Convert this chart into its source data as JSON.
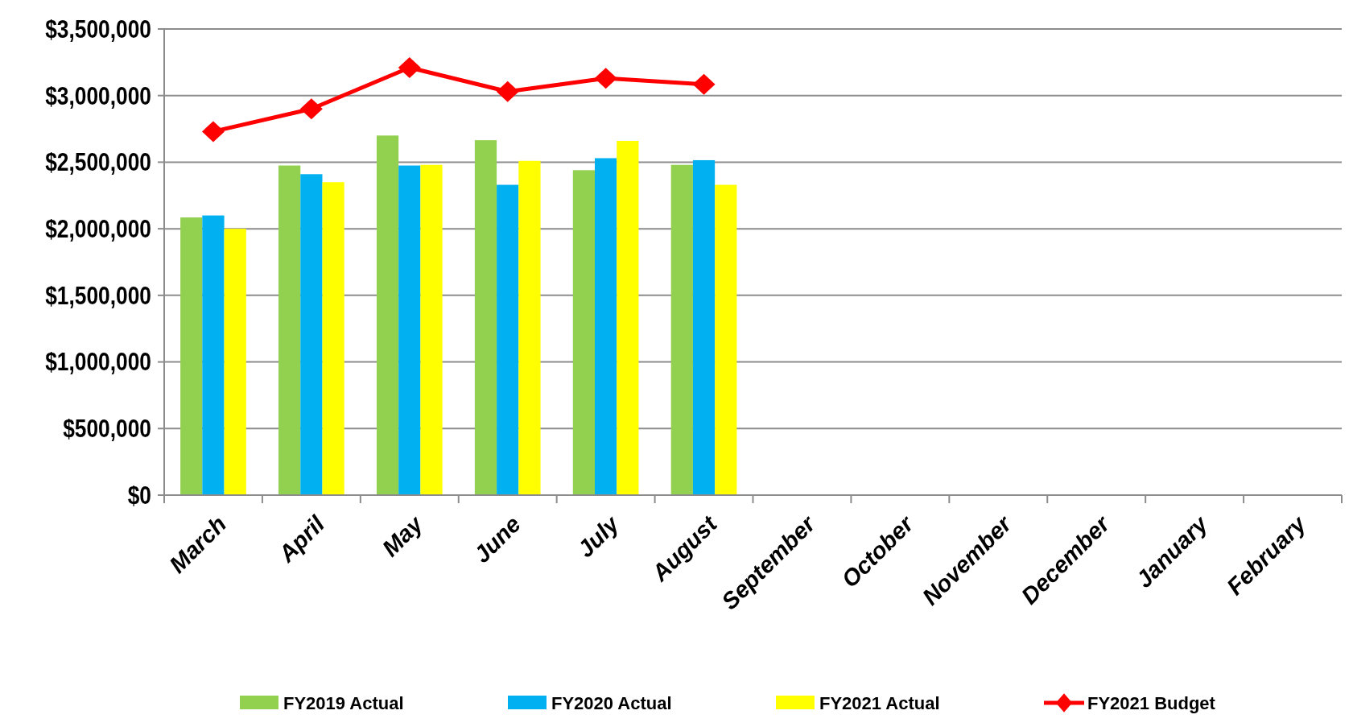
{
  "chart_data": {
    "type": "bar",
    "categories": [
      "March",
      "April",
      "May",
      "June",
      "July",
      "August",
      "September",
      "October",
      "November",
      "December",
      "January",
      "February"
    ],
    "series": [
      {
        "name": "FY2019 Actual",
        "color": "#92d050",
        "values": [
          2085000,
          2475000,
          2700000,
          2665000,
          2440000,
          2480000,
          null,
          null,
          null,
          null,
          null,
          null
        ]
      },
      {
        "name": "FY2020 Actual",
        "color": "#00b0f0",
        "values": [
          2100000,
          2410000,
          2475000,
          2330000,
          2530000,
          2515000,
          null,
          null,
          null,
          null,
          null,
          null
        ]
      },
      {
        "name": "FY2021 Actual",
        "color": "#ffff00",
        "values": [
          2000000,
          2350000,
          2480000,
          2510000,
          2660000,
          2330000,
          null,
          null,
          null,
          null,
          null,
          null
        ]
      },
      {
        "name": "FY2021 Budget",
        "color": "#ff0000",
        "type": "line",
        "marker": "diamond",
        "values": [
          2730000,
          2900000,
          3210000,
          3030000,
          3130000,
          3085000,
          null,
          null,
          null,
          null,
          null,
          null
        ]
      }
    ],
    "ylim": [
      0,
      3500000
    ],
    "yticks": [
      {
        "value": 0,
        "label": "$0"
      },
      {
        "value": 500000,
        "label": "$500,000"
      },
      {
        "value": 1000000,
        "label": "$1,000,000"
      },
      {
        "value": 1500000,
        "label": "$1,500,000"
      },
      {
        "value": 2000000,
        "label": "$2,000,000"
      },
      {
        "value": 2500000,
        "label": "$2,500,000"
      },
      {
        "value": 3000000,
        "label": "$3,000,000"
      },
      {
        "value": 3500000,
        "label": "$3,500,000"
      }
    ],
    "grid": "y",
    "legend": "bottom"
  }
}
